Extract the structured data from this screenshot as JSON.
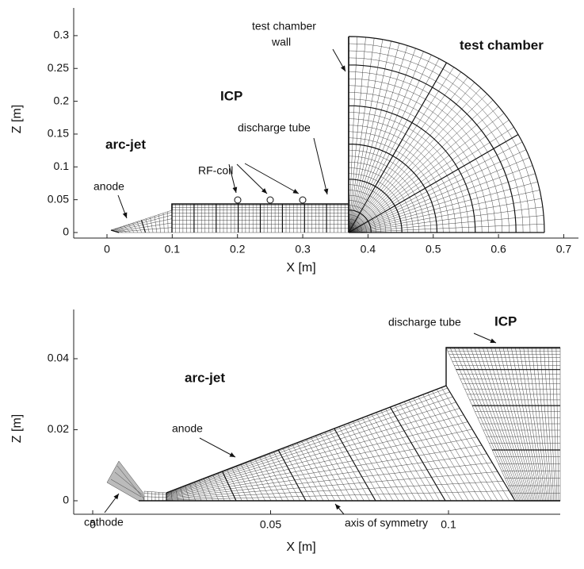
{
  "panels": [
    {
      "x_axis": {
        "label": "X [m]",
        "ticks": [
          0,
          0.1,
          0.2,
          0.3,
          0.4,
          0.5,
          0.6,
          0.7
        ]
      },
      "y_axis": {
        "label": "Z [m]",
        "ticks": [
          0,
          0.05,
          0.1,
          0.15,
          0.2,
          0.25,
          0.3
        ]
      },
      "annotations": [
        "test chamber",
        "wall",
        "test chamber",
        "ICP",
        "discharge tube",
        "arc-jet",
        "RF-coil",
        "anode"
      ]
    },
    {
      "x_axis": {
        "label": "X [m]",
        "ticks": [
          0,
          0.05,
          0.1
        ]
      },
      "y_axis": {
        "label": "Z [m]",
        "ticks": [
          0,
          0.02,
          0.04
        ]
      },
      "annotations": [
        "discharge tube",
        "ICP",
        "arc-jet",
        "anode",
        "cathode",
        "axis of symmetry"
      ]
    }
  ]
}
